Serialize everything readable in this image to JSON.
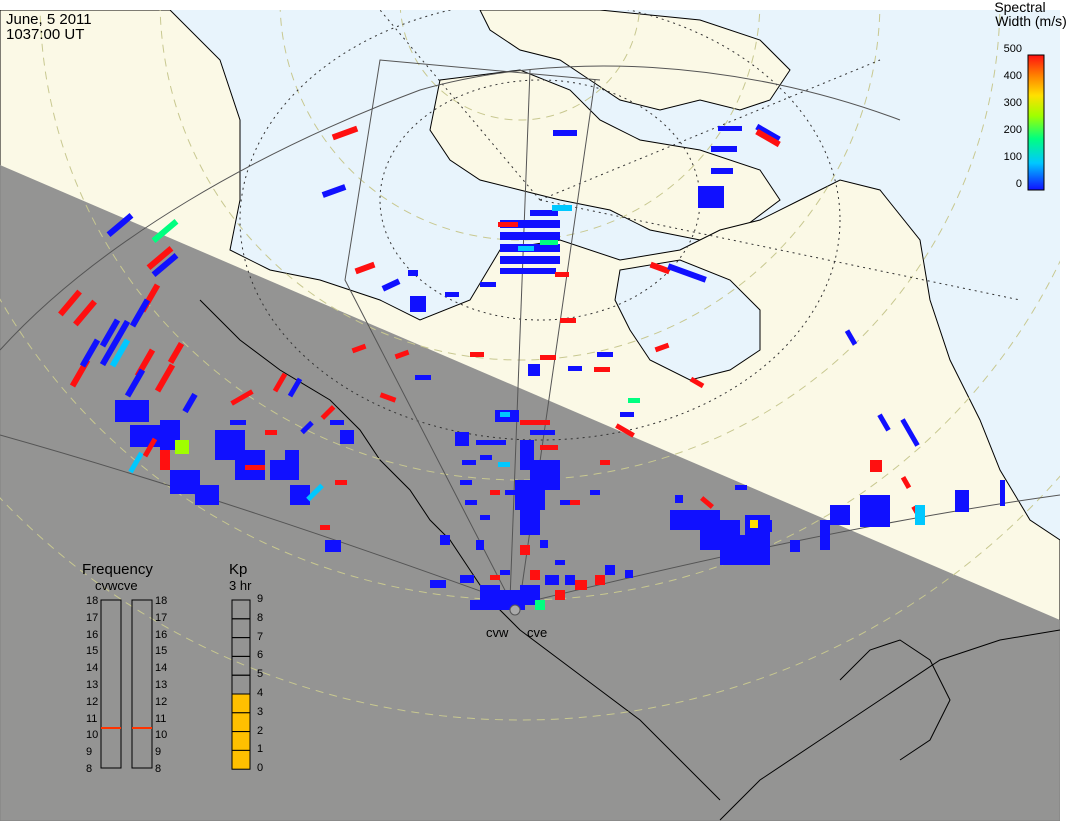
{
  "header": {
    "date": "June, 5 2011",
    "time": "1037:00 UT"
  },
  "colorbar": {
    "title_line1": "Spectral",
    "title_line2": "Width (m/s)",
    "ticks": [
      "500",
      "400",
      "300",
      "200",
      "100",
      "0"
    ]
  },
  "frequency_panel": {
    "title": "Frequency",
    "subtitle": "cvwcve",
    "ticks": [
      "18",
      "17",
      "16",
      "15",
      "14",
      "13",
      "12",
      "11",
      "10",
      "9",
      "8"
    ],
    "cvw_value": 10.5,
    "cve_value": 10.5,
    "marker_color": "#ff3300"
  },
  "kp_panel": {
    "title": "Kp",
    "subtitle": "3 hr",
    "ticks": [
      "9",
      "8",
      "7",
      "6",
      "5",
      "4",
      "3",
      "2",
      "1",
      "0"
    ],
    "value": 4,
    "fill_color": "#ffc000"
  },
  "stations": {
    "west": "cvw",
    "east": "cve"
  },
  "colors": {
    "night_shade": "#8c8c8c",
    "day_ocean": "#e8f4fc",
    "land": "#fbf9e6",
    "low_width": "#1010ff",
    "high_width": "#ff1010"
  }
}
